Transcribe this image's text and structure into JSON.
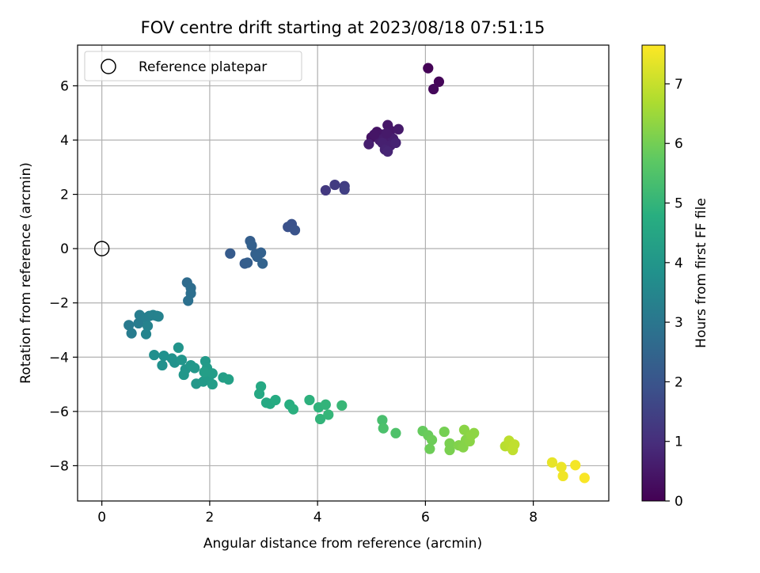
{
  "chart_data": {
    "type": "scatter",
    "title": "FOV centre drift starting at 2023/08/18 07:51:15",
    "xlabel": "Angular distance from reference (arcmin)",
    "ylabel": "Rotation from reference (arcmin)",
    "xlim": [
      -0.45,
      9.4
    ],
    "ylim": [
      -9.3,
      7.5
    ],
    "xticks": [
      0,
      2,
      4,
      6,
      8
    ],
    "yticks": [
      -8,
      -6,
      -4,
      -2,
      0,
      2,
      4,
      6
    ],
    "grid": true,
    "legend": {
      "position": "top-left",
      "entries": [
        "Reference platepar"
      ]
    },
    "reference_point": {
      "x": 0,
      "y": 0
    },
    "colorbar": {
      "label": "Hours from first FF file",
      "range": [
        0,
        7.65
      ],
      "ticks": [
        0,
        1,
        2,
        3,
        4,
        5,
        6,
        7
      ],
      "colormap": "viridis"
    },
    "points": [
      {
        "x": 6.05,
        "y": 6.65,
        "c": 0.05
      },
      {
        "x": 6.25,
        "y": 6.15,
        "c": 0.1
      },
      {
        "x": 6.15,
        "y": 5.88,
        "c": 0.15
      },
      {
        "x": 5.0,
        "y": 4.1,
        "c": 0.35
      },
      {
        "x": 5.1,
        "y": 4.3,
        "c": 0.4
      },
      {
        "x": 5.2,
        "y": 4.2,
        "c": 0.45
      },
      {
        "x": 5.3,
        "y": 4.55,
        "c": 0.5
      },
      {
        "x": 5.35,
        "y": 4.35,
        "c": 0.5
      },
      {
        "x": 5.5,
        "y": 4.4,
        "c": 0.55
      },
      {
        "x": 5.15,
        "y": 4.0,
        "c": 0.6
      },
      {
        "x": 5.25,
        "y": 4.1,
        "c": 0.6
      },
      {
        "x": 5.4,
        "y": 4.05,
        "c": 0.65
      },
      {
        "x": 4.95,
        "y": 3.85,
        "c": 0.65
      },
      {
        "x": 5.2,
        "y": 3.9,
        "c": 0.7
      },
      {
        "x": 5.35,
        "y": 3.8,
        "c": 0.7
      },
      {
        "x": 5.45,
        "y": 3.9,
        "c": 0.75
      },
      {
        "x": 5.25,
        "y": 3.65,
        "c": 0.75
      },
      {
        "x": 5.3,
        "y": 3.58,
        "c": 0.8
      },
      {
        "x": 5.05,
        "y": 4.2,
        "c": 0.45
      },
      {
        "x": 5.28,
        "y": 4.25,
        "c": 0.55
      },
      {
        "x": 4.15,
        "y": 2.15,
        "c": 1.3
      },
      {
        "x": 4.32,
        "y": 2.35,
        "c": 1.35
      },
      {
        "x": 4.5,
        "y": 2.3,
        "c": 1.4
      },
      {
        "x": 4.5,
        "y": 2.18,
        "c": 1.45
      },
      {
        "x": 3.45,
        "y": 0.8,
        "c": 1.9
      },
      {
        "x": 3.52,
        "y": 0.9,
        "c": 1.95
      },
      {
        "x": 3.58,
        "y": 0.68,
        "c": 2.0
      },
      {
        "x": 2.38,
        "y": -0.18,
        "c": 2.2
      },
      {
        "x": 2.65,
        "y": -0.55,
        "c": 2.25
      },
      {
        "x": 2.7,
        "y": -0.52,
        "c": 2.3
      },
      {
        "x": 2.75,
        "y": 0.28,
        "c": 2.3
      },
      {
        "x": 2.78,
        "y": 0.12,
        "c": 2.35
      },
      {
        "x": 2.85,
        "y": -0.2,
        "c": 2.35
      },
      {
        "x": 2.95,
        "y": -0.15,
        "c": 2.4
      },
      {
        "x": 2.88,
        "y": -0.3,
        "c": 2.4
      },
      {
        "x": 2.98,
        "y": -0.55,
        "c": 2.45
      },
      {
        "x": 1.58,
        "y": -1.25,
        "c": 2.7
      },
      {
        "x": 1.65,
        "y": -1.45,
        "c": 2.75
      },
      {
        "x": 1.65,
        "y": -1.65,
        "c": 2.8
      },
      {
        "x": 1.6,
        "y": -1.92,
        "c": 2.85
      },
      {
        "x": 0.5,
        "y": -2.82,
        "c": 3.15
      },
      {
        "x": 0.55,
        "y": -3.12,
        "c": 3.2
      },
      {
        "x": 0.68,
        "y": -2.75,
        "c": 3.2
      },
      {
        "x": 0.7,
        "y": -2.45,
        "c": 3.25
      },
      {
        "x": 0.82,
        "y": -2.55,
        "c": 3.3
      },
      {
        "x": 0.88,
        "y": -2.48,
        "c": 3.3
      },
      {
        "x": 0.95,
        "y": -2.45,
        "c": 3.35
      },
      {
        "x": 1.02,
        "y": -2.48,
        "c": 3.35
      },
      {
        "x": 1.05,
        "y": -2.5,
        "c": 3.4
      },
      {
        "x": 0.85,
        "y": -2.85,
        "c": 3.4
      },
      {
        "x": 0.82,
        "y": -3.15,
        "c": 3.45
      },
      {
        "x": 0.97,
        "y": -3.92,
        "c": 3.8
      },
      {
        "x": 1.12,
        "y": -4.3,
        "c": 3.85
      },
      {
        "x": 1.15,
        "y": -3.95,
        "c": 3.85
      },
      {
        "x": 1.3,
        "y": -4.05,
        "c": 3.9
      },
      {
        "x": 1.35,
        "y": -4.2,
        "c": 3.9
      },
      {
        "x": 1.42,
        "y": -3.65,
        "c": 3.95
      },
      {
        "x": 1.48,
        "y": -4.1,
        "c": 4.0
      },
      {
        "x": 1.55,
        "y": -4.45,
        "c": 4.0
      },
      {
        "x": 1.52,
        "y": -4.65,
        "c": 4.05
      },
      {
        "x": 1.65,
        "y": -4.3,
        "c": 4.05
      },
      {
        "x": 1.72,
        "y": -4.4,
        "c": 4.1
      },
      {
        "x": 1.75,
        "y": -4.98,
        "c": 4.1
      },
      {
        "x": 1.88,
        "y": -4.9,
        "c": 4.15
      },
      {
        "x": 1.92,
        "y": -4.15,
        "c": 4.15
      },
      {
        "x": 1.95,
        "y": -4.4,
        "c": 4.2
      },
      {
        "x": 1.98,
        "y": -4.75,
        "c": 4.2
      },
      {
        "x": 2.05,
        "y": -4.6,
        "c": 4.25
      },
      {
        "x": 2.05,
        "y": -5.0,
        "c": 4.25
      },
      {
        "x": 2.25,
        "y": -4.75,
        "c": 4.3
      },
      {
        "x": 2.35,
        "y": -4.82,
        "c": 4.35
      },
      {
        "x": 1.9,
        "y": -4.55,
        "c": 4.3
      },
      {
        "x": 2.92,
        "y": -5.35,
        "c": 4.6
      },
      {
        "x": 2.95,
        "y": -5.08,
        "c": 4.6
      },
      {
        "x": 3.05,
        "y": -5.68,
        "c": 4.65
      },
      {
        "x": 3.12,
        "y": -5.72,
        "c": 4.65
      },
      {
        "x": 3.22,
        "y": -5.58,
        "c": 4.7
      },
      {
        "x": 3.48,
        "y": -5.75,
        "c": 4.8
      },
      {
        "x": 3.55,
        "y": -5.92,
        "c": 4.85
      },
      {
        "x": 3.85,
        "y": -5.58,
        "c": 4.9
      },
      {
        "x": 4.02,
        "y": -5.85,
        "c": 4.95
      },
      {
        "x": 4.05,
        "y": -6.28,
        "c": 5.0
      },
      {
        "x": 4.15,
        "y": -5.75,
        "c": 5.0
      },
      {
        "x": 4.2,
        "y": -6.12,
        "c": 5.05
      },
      {
        "x": 4.45,
        "y": -5.78,
        "c": 5.1
      },
      {
        "x": 5.2,
        "y": -6.32,
        "c": 5.4
      },
      {
        "x": 5.22,
        "y": -6.62,
        "c": 5.45
      },
      {
        "x": 5.45,
        "y": -6.8,
        "c": 5.5
      },
      {
        "x": 5.95,
        "y": -6.72,
        "c": 5.85
      },
      {
        "x": 6.05,
        "y": -6.88,
        "c": 5.9
      },
      {
        "x": 6.12,
        "y": -7.05,
        "c": 5.95
      },
      {
        "x": 6.08,
        "y": -7.38,
        "c": 5.95
      },
      {
        "x": 6.35,
        "y": -6.75,
        "c": 6.05
      },
      {
        "x": 6.45,
        "y": -7.18,
        "c": 6.1
      },
      {
        "x": 6.45,
        "y": -7.42,
        "c": 6.1
      },
      {
        "x": 6.62,
        "y": -7.25,
        "c": 6.2
      },
      {
        "x": 6.7,
        "y": -7.32,
        "c": 6.25
      },
      {
        "x": 6.75,
        "y": -7.05,
        "c": 6.25
      },
      {
        "x": 6.72,
        "y": -6.68,
        "c": 6.3
      },
      {
        "x": 6.82,
        "y": -7.1,
        "c": 6.3
      },
      {
        "x": 6.85,
        "y": -6.88,
        "c": 6.35
      },
      {
        "x": 6.9,
        "y": -6.8,
        "c": 6.35
      },
      {
        "x": 7.48,
        "y": -7.28,
        "c": 6.85
      },
      {
        "x": 7.55,
        "y": -7.08,
        "c": 6.9
      },
      {
        "x": 7.58,
        "y": -7.25,
        "c": 6.9
      },
      {
        "x": 7.62,
        "y": -7.42,
        "c": 6.95
      },
      {
        "x": 7.65,
        "y": -7.22,
        "c": 6.95
      },
      {
        "x": 8.35,
        "y": -7.88,
        "c": 7.4
      },
      {
        "x": 8.52,
        "y": -8.05,
        "c": 7.45
      },
      {
        "x": 8.55,
        "y": -8.38,
        "c": 7.5
      },
      {
        "x": 8.78,
        "y": -7.98,
        "c": 7.55
      },
      {
        "x": 8.95,
        "y": -8.45,
        "c": 7.6
      }
    ]
  }
}
